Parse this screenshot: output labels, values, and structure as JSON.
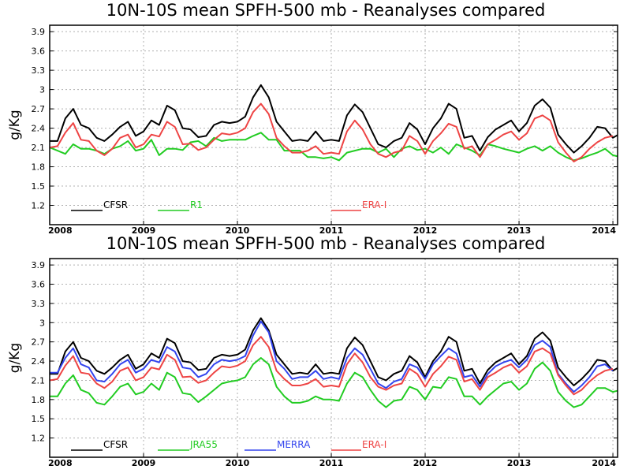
{
  "chart_data": [
    {
      "type": "line",
      "title": "10N-10S mean SPFH-500 mb - Reanalyses compared",
      "ylabel": "g/Kg",
      "xlabel": "",
      "ylim": [
        0.9,
        4.0
      ],
      "yticks": [
        "1.2",
        "1.5",
        "1.8",
        "2.1",
        "2.4",
        "2.7",
        "3",
        "3.3",
        "3.6",
        "3.9"
      ],
      "xlim": [
        2008.0,
        2014.05
      ],
      "xticks": [
        "2008",
        "2009",
        "2010",
        "2011",
        "2012",
        "2013",
        "2014"
      ],
      "grid": true,
      "legend_position": "bottom",
      "series": [
        {
          "name": "CFSR",
          "color": "#000000",
          "x_start": 2008.0,
          "step": 0.0833333,
          "values": [
            2.2,
            2.2,
            2.55,
            2.7,
            2.45,
            2.4,
            2.25,
            2.2,
            2.3,
            2.42,
            2.5,
            2.28,
            2.35,
            2.52,
            2.45,
            2.75,
            2.68,
            2.4,
            2.38,
            2.26,
            2.28,
            2.45,
            2.5,
            2.48,
            2.5,
            2.58,
            2.88,
            3.07,
            2.88,
            2.5,
            2.35,
            2.2,
            2.22,
            2.2,
            2.35,
            2.2,
            2.22,
            2.2,
            2.6,
            2.77,
            2.65,
            2.4,
            2.15,
            2.1,
            2.2,
            2.25,
            2.48,
            2.38,
            2.15,
            2.4,
            2.55,
            2.78,
            2.7,
            2.25,
            2.28,
            2.05,
            2.26,
            2.38,
            2.45,
            2.52,
            2.35,
            2.48,
            2.75,
            2.85,
            2.72,
            2.3,
            2.15,
            2.02,
            2.12,
            2.25,
            2.42,
            2.4,
            2.25,
            2.32
          ]
        },
        {
          "name": "R1",
          "color": "#22cc22",
          "x_start": 2008.0,
          "step": 0.0833333,
          "values": [
            2.1,
            2.05,
            2.0,
            2.15,
            2.08,
            2.08,
            2.05,
            2.0,
            2.08,
            2.12,
            2.2,
            2.05,
            2.08,
            2.22,
            1.98,
            2.08,
            2.08,
            2.06,
            2.18,
            2.2,
            2.12,
            2.25,
            2.2,
            2.22,
            2.22,
            2.22,
            2.28,
            2.33,
            2.22,
            2.22,
            2.05,
            2.05,
            2.05,
            1.95,
            1.95,
            1.93,
            1.95,
            1.9,
            2.02,
            2.05,
            2.08,
            2.08,
            2.02,
            2.08,
            1.95,
            2.08,
            2.12,
            2.06,
            2.08,
            2.02,
            2.1,
            2.0,
            2.15,
            2.1,
            2.05,
            1.98,
            2.15,
            2.12,
            2.08,
            2.05,
            2.02,
            2.08,
            2.12,
            2.05,
            2.12,
            2.02,
            1.95,
            1.9,
            1.93,
            1.98,
            2.02,
            2.08,
            1.98,
            1.95
          ]
        },
        {
          "name": "ERA-I",
          "color": "#ee4444",
          "x_start": 2008.0,
          "step": 0.0833333,
          "values": [
            2.1,
            2.12,
            2.33,
            2.48,
            2.22,
            2.2,
            2.05,
            1.98,
            2.08,
            2.25,
            2.3,
            2.1,
            2.15,
            2.3,
            2.27,
            2.5,
            2.42,
            2.15,
            2.16,
            2.06,
            2.1,
            2.22,
            2.32,
            2.3,
            2.33,
            2.4,
            2.65,
            2.78,
            2.62,
            2.25,
            2.12,
            2.02,
            2.02,
            2.05,
            2.12,
            2.0,
            2.02,
            2.0,
            2.35,
            2.52,
            2.38,
            2.15,
            2.0,
            1.95,
            2.02,
            2.05,
            2.28,
            2.2,
            2.0,
            2.2,
            2.32,
            2.47,
            2.42,
            2.08,
            2.12,
            1.95,
            2.15,
            2.22,
            2.3,
            2.35,
            2.22,
            2.32,
            2.55,
            2.6,
            2.52,
            2.18,
            2.02,
            1.88,
            1.95,
            2.08,
            2.18,
            2.25,
            2.28
          ]
        }
      ]
    },
    {
      "type": "line",
      "title": "10N-10S mean SPFH-500 mb - Reanalyses compared",
      "ylabel": "g/Kg",
      "xlabel": "",
      "ylim": [
        0.9,
        4.0
      ],
      "yticks": [
        "1.2",
        "1.5",
        "1.8",
        "2.1",
        "2.4",
        "2.7",
        "3",
        "3.3",
        "3.6",
        "3.9"
      ],
      "xlim": [
        2008.0,
        2014.05
      ],
      "xticks": [
        "2008",
        "2009",
        "2010",
        "2011",
        "2012",
        "2013",
        "2014"
      ],
      "grid": true,
      "legend_position": "bottom",
      "series": [
        {
          "name": "CFSR",
          "color": "#000000",
          "x_start": 2008.0,
          "step": 0.0833333,
          "values": [
            2.2,
            2.2,
            2.55,
            2.7,
            2.45,
            2.4,
            2.25,
            2.2,
            2.3,
            2.42,
            2.5,
            2.28,
            2.35,
            2.52,
            2.45,
            2.75,
            2.68,
            2.4,
            2.38,
            2.26,
            2.28,
            2.45,
            2.5,
            2.48,
            2.5,
            2.58,
            2.88,
            3.07,
            2.88,
            2.5,
            2.35,
            2.2,
            2.22,
            2.2,
            2.35,
            2.2,
            2.22,
            2.2,
            2.6,
            2.77,
            2.65,
            2.4,
            2.15,
            2.1,
            2.2,
            2.25,
            2.48,
            2.38,
            2.15,
            2.4,
            2.55,
            2.78,
            2.7,
            2.25,
            2.28,
            2.05,
            2.26,
            2.38,
            2.45,
            2.52,
            2.35,
            2.48,
            2.75,
            2.85,
            2.72,
            2.3,
            2.15,
            2.02,
            2.12,
            2.25,
            2.42,
            2.4,
            2.25,
            2.32
          ]
        },
        {
          "name": "JRA55",
          "color": "#22cc22",
          "x_start": 2008.0,
          "step": 0.0833333,
          "values": [
            1.85,
            1.85,
            2.05,
            2.18,
            1.95,
            1.9,
            1.75,
            1.72,
            1.85,
            2.0,
            2.05,
            1.88,
            1.92,
            2.05,
            1.95,
            2.22,
            2.15,
            1.9,
            1.88,
            1.76,
            1.85,
            1.95,
            2.05,
            2.08,
            2.1,
            2.15,
            2.35,
            2.45,
            2.35,
            2.0,
            1.85,
            1.75,
            1.75,
            1.78,
            1.85,
            1.8,
            1.8,
            1.78,
            2.05,
            2.22,
            2.15,
            1.95,
            1.78,
            1.68,
            1.78,
            1.8,
            2.0,
            1.95,
            1.8,
            2.0,
            1.98,
            2.15,
            2.12,
            1.85,
            1.85,
            1.72,
            1.85,
            1.95,
            2.05,
            2.08,
            1.95,
            2.05,
            2.28,
            2.38,
            2.25,
            1.92,
            1.78,
            1.68,
            1.72,
            1.85,
            1.98,
            1.98,
            1.92,
            1.95
          ]
        },
        {
          "name": "MERRA",
          "color": "#3344ee",
          "x_start": 2008.0,
          "step": 0.0833333,
          "values": [
            2.22,
            2.22,
            2.45,
            2.6,
            2.35,
            2.3,
            2.1,
            2.08,
            2.2,
            2.35,
            2.42,
            2.22,
            2.28,
            2.42,
            2.38,
            2.62,
            2.55,
            2.3,
            2.28,
            2.15,
            2.2,
            2.35,
            2.42,
            2.4,
            2.42,
            2.48,
            2.8,
            3.02,
            2.85,
            2.4,
            2.28,
            2.12,
            2.15,
            2.15,
            2.25,
            2.12,
            2.15,
            2.12,
            2.45,
            2.6,
            2.5,
            2.28,
            2.05,
            1.98,
            2.08,
            2.12,
            2.35,
            2.3,
            2.12,
            2.35,
            2.48,
            2.6,
            2.52,
            2.15,
            2.18,
            2.0,
            2.2,
            2.32,
            2.38,
            2.42,
            2.3,
            2.42,
            2.65,
            2.72,
            2.62,
            2.2,
            2.05,
            1.92,
            2.02,
            2.15,
            2.32,
            2.35,
            2.25
          ]
        },
        {
          "name": "ERA-I",
          "color": "#ee4444",
          "x_start": 2008.0,
          "step": 0.0833333,
          "values": [
            2.1,
            2.12,
            2.33,
            2.48,
            2.22,
            2.2,
            2.05,
            1.98,
            2.08,
            2.25,
            2.3,
            2.1,
            2.15,
            2.3,
            2.27,
            2.5,
            2.42,
            2.15,
            2.16,
            2.06,
            2.1,
            2.22,
            2.32,
            2.3,
            2.33,
            2.4,
            2.65,
            2.78,
            2.62,
            2.25,
            2.12,
            2.02,
            2.02,
            2.05,
            2.12,
            2.0,
            2.02,
            2.0,
            2.35,
            2.52,
            2.38,
            2.15,
            2.0,
            1.95,
            2.02,
            2.05,
            2.28,
            2.2,
            2.0,
            2.2,
            2.32,
            2.47,
            2.42,
            2.08,
            2.12,
            1.95,
            2.15,
            2.22,
            2.3,
            2.35,
            2.22,
            2.32,
            2.55,
            2.6,
            2.52,
            2.18,
            2.02,
            1.88,
            1.95,
            2.08,
            2.18,
            2.25,
            2.28
          ]
        }
      ]
    }
  ]
}
